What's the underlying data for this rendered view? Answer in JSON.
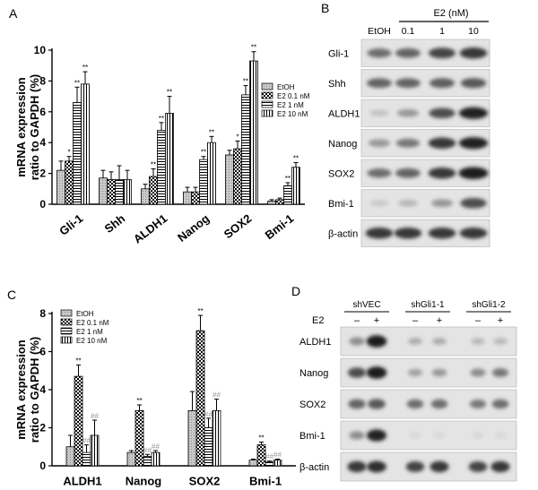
{
  "panels": {
    "A": "A",
    "B": "B",
    "C": "C",
    "D": "D"
  },
  "chart_data": [
    {
      "type": "bar",
      "panel": "A",
      "ylabel": "mRNA expression ratio to GAPDH (%)",
      "ylim": [
        0,
        10
      ],
      "yticks": [
        0,
        2,
        4,
        6,
        8,
        10
      ],
      "categories": [
        "Gli-1",
        "Shh",
        "ALDH1",
        "Nanog",
        "SOX2",
        "Bmi-1"
      ],
      "legend_position": "right",
      "series": [
        {
          "name": "EtOH",
          "pattern": "light",
          "values": [
            2.2,
            1.7,
            1.0,
            0.8,
            3.2,
            0.2
          ],
          "errors": [
            0.6,
            0.5,
            0.3,
            0.3,
            0.3,
            0.1
          ]
        },
        {
          "name": "E2 0.1 nM",
          "pattern": "check",
          "values": [
            2.8,
            1.6,
            1.8,
            0.8,
            3.6,
            0.3
          ],
          "errors": [
            0.3,
            0.5,
            0.5,
            0.3,
            0.5,
            0.1
          ]
        },
        {
          "name": "E2 1 nM",
          "pattern": "hlines",
          "values": [
            6.6,
            1.6,
            4.8,
            2.9,
            7.1,
            1.2
          ],
          "errors": [
            1.0,
            0.9,
            0.5,
            0.2,
            0.6,
            0.2
          ]
        },
        {
          "name": "E2 10 nM",
          "pattern": "vlines",
          "values": [
            7.8,
            1.6,
            5.9,
            4.0,
            9.3,
            2.4
          ],
          "errors": [
            0.8,
            0.6,
            1.1,
            0.4,
            0.6,
            0.3
          ]
        }
      ],
      "sig": [
        [
          "",
          "*",
          "**",
          "**"
        ],
        [
          "",
          "",
          "",
          ""
        ],
        [
          "",
          "**",
          "**",
          "**"
        ],
        [
          "",
          "",
          "**",
          "**"
        ],
        [
          "",
          "*",
          "**",
          "**"
        ],
        [
          "",
          "",
          "**",
          "**"
        ]
      ]
    },
    {
      "type": "bar",
      "panel": "C",
      "ylabel": "mRNA expression ratio to GAPDH (%)",
      "ylim": [
        0,
        8
      ],
      "yticks": [
        0,
        2,
        4,
        6,
        8
      ],
      "categories": [
        "ALDH1",
        "Nanog",
        "SOX2",
        "Bmi-1"
      ],
      "legend_position": "top-left",
      "series": [
        {
          "name": "EtOH",
          "pattern": "light",
          "values": [
            1.0,
            0.7,
            2.9,
            0.3
          ],
          "errors": [
            0.6,
            0.1,
            1.0,
            0.05
          ]
        },
        {
          "name": "E2 0.1 nM",
          "pattern": "check",
          "values": [
            4.7,
            2.9,
            7.1,
            1.1
          ],
          "errors": [
            0.6,
            0.3,
            0.8,
            0.15
          ]
        },
        {
          "name": "E2 1 nM",
          "pattern": "hlines",
          "values": [
            0.7,
            0.5,
            2.0,
            0.2
          ],
          "errors": [
            0.4,
            0.1,
            0.5,
            0.05
          ]
        },
        {
          "name": "E2 10 nM",
          "pattern": "vlines",
          "values": [
            1.6,
            0.7,
            2.9,
            0.3
          ],
          "errors": [
            0.8,
            0.1,
            0.6,
            0.05
          ]
        }
      ],
      "sig": [
        [
          "",
          "**",
          "",
          ""
        ],
        [
          "",
          "**",
          "",
          ""
        ],
        [
          "",
          "**",
          "",
          ""
        ],
        [
          "",
          "**",
          "",
          ""
        ]
      ],
      "sig2": [
        [
          "",
          "",
          "##",
          "##"
        ],
        [
          "",
          "",
          "##",
          "##"
        ],
        [
          "",
          "",
          "##",
          "##"
        ],
        [
          "",
          "",
          "##",
          "##"
        ]
      ]
    }
  ],
  "blot_B": {
    "header": "E2 (nM)",
    "lanes": [
      "EtOH",
      "0.1",
      "1",
      "10"
    ],
    "rows": [
      {
        "label": "Gli-1",
        "intensity": [
          0.55,
          0.6,
          0.75,
          0.8
        ]
      },
      {
        "label": "Shh",
        "intensity": [
          0.6,
          0.6,
          0.62,
          0.65
        ]
      },
      {
        "label": "ALDH1",
        "intensity": [
          0.15,
          0.35,
          0.7,
          0.9
        ]
      },
      {
        "label": "Nanog",
        "intensity": [
          0.35,
          0.5,
          0.8,
          0.9
        ]
      },
      {
        "label": "SOX2",
        "intensity": [
          0.55,
          0.6,
          0.8,
          0.95
        ]
      },
      {
        "label": "Bmi-1",
        "intensity": [
          0.12,
          0.2,
          0.35,
          0.7
        ]
      },
      {
        "label": "β-actin",
        "intensity": [
          0.8,
          0.8,
          0.8,
          0.8
        ]
      }
    ]
  },
  "blot_D": {
    "e2_label": "E2",
    "groups": [
      "shVEC",
      "shGli1-1",
      "shGli1-2"
    ],
    "lane_signs": [
      "–",
      "+",
      "–",
      "+",
      "–",
      "+"
    ],
    "rows": [
      {
        "label": "ALDH1",
        "intensity": [
          0.4,
          0.95,
          0.25,
          0.25,
          0.2,
          0.2
        ]
      },
      {
        "label": "Nanog",
        "intensity": [
          0.7,
          0.95,
          0.3,
          0.35,
          0.4,
          0.5
        ]
      },
      {
        "label": "SOX2",
        "intensity": [
          0.6,
          0.65,
          0.55,
          0.55,
          0.5,
          0.55
        ]
      },
      {
        "label": "Bmi-1",
        "intensity": [
          0.4,
          0.9,
          0.05,
          0.05,
          0.05,
          0.05
        ]
      },
      {
        "label": "β-actin",
        "intensity": [
          0.8,
          0.85,
          0.75,
          0.8,
          0.75,
          0.8
        ]
      }
    ]
  }
}
